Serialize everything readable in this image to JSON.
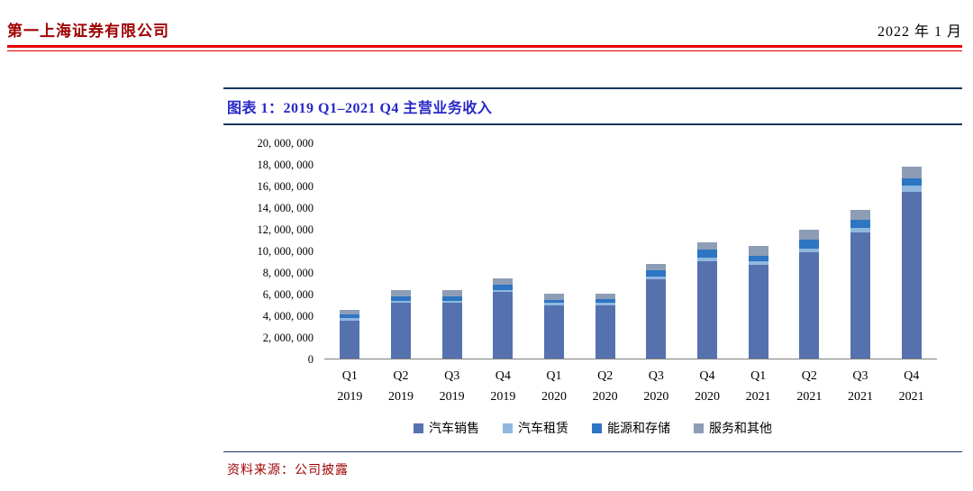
{
  "header": {
    "company": "第一上海证券有限公司",
    "date": "2022 年 1 月"
  },
  "figure": {
    "title": "图表 1：2019 Q1–2021 Q4 主营业务收入",
    "source": "资料来源：公司披露"
  },
  "colors": {
    "accent_red_text": "#9E0000",
    "rule_red": "#E60000",
    "navy_border": "#17365D",
    "title_blue": "#2828C8"
  },
  "chart_data": {
    "type": "bar",
    "stacked": true,
    "title": "2019 Q1–2021 Q4 主营业务收入",
    "xlabel": "",
    "ylabel": "",
    "ylim": [
      0,
      20000000
    ],
    "ytick_step": 2000000,
    "grid": false,
    "legend_position": "bottom",
    "categories": [
      {
        "quarter": "Q1",
        "year": "2019"
      },
      {
        "quarter": "Q2",
        "year": "2019"
      },
      {
        "quarter": "Q3",
        "year": "2019"
      },
      {
        "quarter": "Q4",
        "year": "2019"
      },
      {
        "quarter": "Q1",
        "year": "2020"
      },
      {
        "quarter": "Q2",
        "year": "2020"
      },
      {
        "quarter": "Q3",
        "year": "2020"
      },
      {
        "quarter": "Q4",
        "year": "2020"
      },
      {
        "quarter": "Q1",
        "year": "2021"
      },
      {
        "quarter": "Q2",
        "year": "2021"
      },
      {
        "quarter": "Q3",
        "year": "2021"
      },
      {
        "quarter": "Q4",
        "year": "2021"
      }
    ],
    "series": [
      {
        "name": "汽车销售",
        "color": "#5572AE",
        "values": [
          3509000,
          5168000,
          5132000,
          6143000,
          4893000,
          4911000,
          7346000,
          9034000,
          8705000,
          9874000,
          11672000,
          15453000
        ]
      },
      {
        "name": "汽车租赁",
        "color": "#8FB8DF",
        "values": [
          215000,
          208000,
          221000,
          225000,
          239000,
          268000,
          265000,
          280000,
          297000,
          332000,
          385000,
          514000
        ]
      },
      {
        "name": "能源和存储",
        "color": "#2E75C3",
        "values": [
          325000,
          368000,
          402000,
          436000,
          293000,
          370000,
          579000,
          752000,
          494000,
          801000,
          806000,
          688000
        ]
      },
      {
        "name": "服务和其他",
        "color": "#8D9DB6",
        "values": [
          493000,
          605000,
          548000,
          580000,
          560000,
          487000,
          581000,
          678000,
          893000,
          951000,
          894000,
          1064000
        ]
      }
    ]
  }
}
